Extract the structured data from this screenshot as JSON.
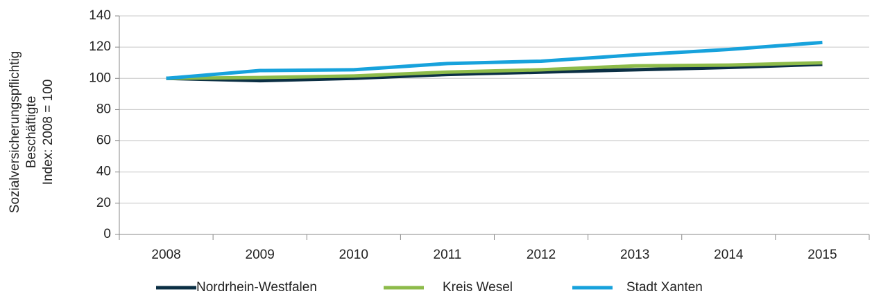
{
  "chart_data": {
    "type": "line",
    "ylabel": [
      "Sozialversicherungspflichtig",
      "Beschäftigte",
      "Index: 2008 = 100"
    ],
    "categories": [
      "2008",
      "2009",
      "2010",
      "2011",
      "2012",
      "2013",
      "2014",
      "2015"
    ],
    "series": [
      {
        "name": "Nordrhein-Westfalen",
        "color": "#0b2f44",
        "values": [
          100,
          98.5,
          100,
          102.5,
          104,
          105.5,
          107,
          109
        ]
      },
      {
        "name": "Kreis Wesel",
        "color": "#8dbb4a",
        "values": [
          100,
          100.5,
          101.5,
          104,
          105.5,
          108,
          108.5,
          110
        ]
      },
      {
        "name": "Stadt Xanten",
        "color": "#17a2dc",
        "values": [
          100,
          105,
          105.5,
          109.5,
          111,
          115,
          118.5,
          123
        ]
      }
    ],
    "ylim": [
      0,
      140
    ],
    "yticks": [
      0,
      20,
      40,
      60,
      80,
      100,
      120,
      140
    ],
    "grid": true,
    "legend": "bottom"
  }
}
